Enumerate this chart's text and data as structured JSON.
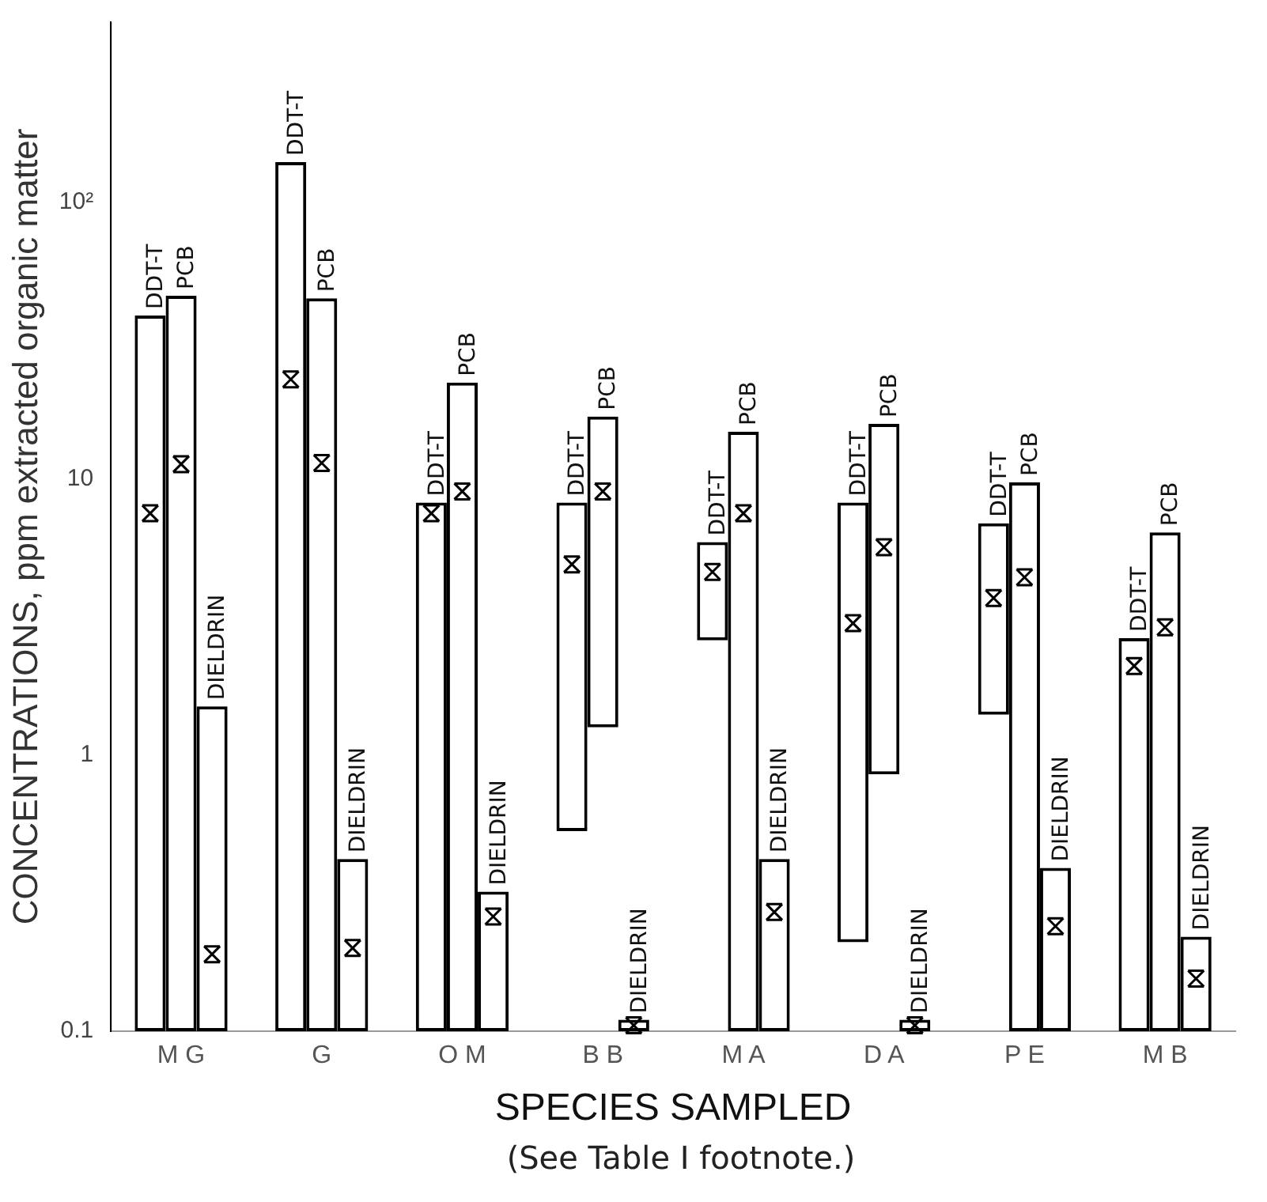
{
  "chart_data": {
    "type": "bar",
    "ylabel": "CONCENTRATIONS, ppm extracted organic matter",
    "xlabel": "SPECIES SAMPLED",
    "annotations": [
      "(See Table I footnote.)"
    ],
    "categories": [
      "M G",
      "G",
      "O M",
      "B B",
      "M A",
      "D A",
      "P E",
      "M B"
    ],
    "log": true,
    "ylim": [
      0.1,
      450
    ],
    "yticks": [
      {
        "value": 0.1,
        "label": "0.1"
      },
      1,
      10,
      {
        "value": 100,
        "label": "10²"
      }
    ],
    "grid": false,
    "legend": false,
    "series": [
      {
        "name": "DDT-T",
        "color": "#ffffff",
        "base": [
          null,
          null,
          null,
          0.53,
          2.6,
          0.21,
          1.4,
          null
        ],
        "values": [
          39,
          140,
          8.2,
          7.67,
          3.3,
          7.99,
          5.5,
          2.65
        ]
      },
      {
        "name": "PCB",
        "color": "#ffffff",
        "base": [
          null,
          null,
          null,
          1.26,
          null,
          0.85,
          null,
          null
        ],
        "values": [
          46,
          45,
          22.3,
          15.54,
          14.8,
          14.95,
          9.7,
          6.4
        ]
      },
      {
        "name": "DIELDRIN",
        "color": "#ffffff",
        "values": [
          1.5,
          0.42,
          0.32,
          0.11,
          0.42,
          0.11,
          0.39,
          0.22
        ]
      },
      {
        "type": "scatter",
        "color": "#000000",
        "marker": "cross",
        "x": [
          "M G",
          "G",
          "O M",
          "B B",
          "M A",
          "D A",
          "P E",
          "M B"
        ],
        "values": [
          7.5,
          22.9,
          7.5,
          4.9,
          4.6,
          3.0,
          3.7,
          2.1
        ]
      },
      {
        "type": "scatter",
        "color": "#000000",
        "marker": "cross",
        "x": [
          "M G",
          "G",
          "O M",
          "B B",
          "M A",
          "D A",
          "P E",
          "M B"
        ],
        "values": [
          11.3,
          11.4,
          9.0,
          9.0,
          7.5,
          5.65,
          4.4,
          2.9
        ]
      },
      {
        "type": "scatter",
        "color": "#000000",
        "marker": "cross",
        "x": [
          "M G",
          "G",
          "O M",
          "B B",
          "M A",
          "D A",
          "P E",
          "M B"
        ],
        "values": [
          0.19,
          0.2,
          0.26,
          0.105,
          0.27,
          0.105,
          0.24,
          0.155
        ]
      }
    ]
  }
}
